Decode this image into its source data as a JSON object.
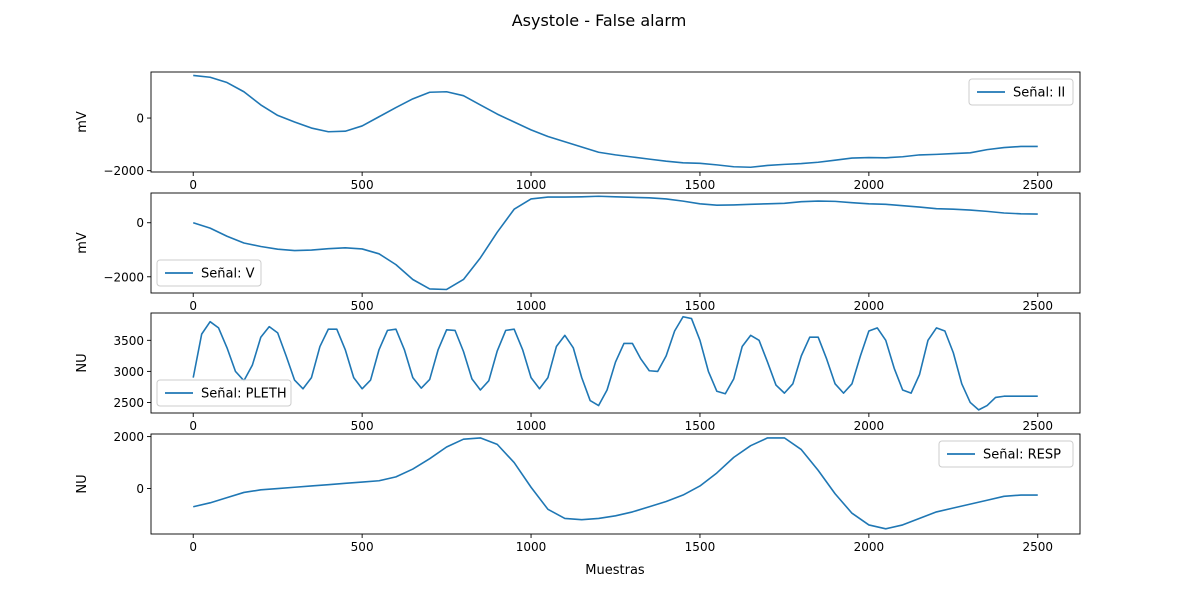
{
  "figure": {
    "title": "Asystole - False alarm",
    "xlabel": "Muestras"
  },
  "colors": {
    "series": "#1f77b4",
    "axes": "#000000",
    "legend_border": "#cccccc",
    "background": "#ffffff"
  },
  "chart_data": [
    {
      "type": "line",
      "ylabel": "mV",
      "xlim": [
        -125,
        2625
      ],
      "ylim": [
        -2050,
        1750
      ],
      "xticks": [
        0,
        500,
        1000,
        1500,
        2000,
        2500
      ],
      "yticks": [
        -2000,
        0
      ],
      "legend_position": "upper-right",
      "grid": false,
      "series": [
        {
          "name": "Señal: II",
          "x": [
            0,
            50,
            100,
            150,
            200,
            250,
            300,
            350,
            400,
            450,
            500,
            550,
            600,
            650,
            700,
            750,
            800,
            850,
            900,
            950,
            1000,
            1050,
            1100,
            1150,
            1200,
            1250,
            1300,
            1350,
            1400,
            1450,
            1500,
            1550,
            1600,
            1650,
            1700,
            1750,
            1800,
            1850,
            1900,
            1950,
            2000,
            2050,
            2100,
            2150,
            2200,
            2250,
            2300,
            2350,
            2400,
            2450,
            2500
          ],
          "y": [
            1620,
            1550,
            1350,
            1000,
            500,
            100,
            -150,
            -380,
            -520,
            -500,
            -300,
            50,
            400,
            730,
            980,
            1000,
            850,
            500,
            150,
            -150,
            -450,
            -700,
            -900,
            -1100,
            -1300,
            -1400,
            -1480,
            -1560,
            -1640,
            -1700,
            -1720,
            -1780,
            -1850,
            -1870,
            -1800,
            -1760,
            -1730,
            -1680,
            -1600,
            -1520,
            -1500,
            -1510,
            -1470,
            -1400,
            -1380,
            -1350,
            -1320,
            -1200,
            -1120,
            -1080,
            -1080
          ]
        }
      ]
    },
    {
      "type": "line",
      "ylabel": "mV",
      "xlim": [
        -125,
        2625
      ],
      "ylim": [
        -2600,
        1100
      ],
      "xticks": [
        0,
        500,
        1000,
        1500,
        2000,
        2500
      ],
      "yticks": [
        -2000,
        0
      ],
      "legend_position": "lower-left",
      "grid": false,
      "series": [
        {
          "name": "Señal: V",
          "x": [
            0,
            50,
            100,
            150,
            200,
            250,
            300,
            350,
            400,
            450,
            500,
            550,
            600,
            650,
            700,
            750,
            800,
            850,
            900,
            950,
            1000,
            1050,
            1100,
            1150,
            1200,
            1250,
            1300,
            1350,
            1400,
            1450,
            1500,
            1550,
            1600,
            1650,
            1700,
            1750,
            1800,
            1850,
            1900,
            1950,
            2000,
            2050,
            2100,
            2150,
            2200,
            2250,
            2300,
            2350,
            2400,
            2450,
            2500
          ],
          "y": [
            0,
            -200,
            -500,
            -750,
            -880,
            -980,
            -1030,
            -1010,
            -960,
            -930,
            -970,
            -1150,
            -1550,
            -2100,
            -2450,
            -2470,
            -2100,
            -1300,
            -350,
            500,
            880,
            950,
            950,
            960,
            980,
            960,
            940,
            920,
            880,
            800,
            700,
            650,
            660,
            680,
            700,
            720,
            780,
            800,
            790,
            740,
            700,
            680,
            630,
            580,
            520,
            500,
            470,
            420,
            360,
            330,
            320
          ]
        }
      ]
    },
    {
      "type": "line",
      "ylabel": "NU",
      "xlim": [
        -125,
        2625
      ],
      "ylim": [
        2330,
        3940
      ],
      "xticks": [
        0,
        500,
        1000,
        1500,
        2000,
        2500
      ],
      "yticks": [
        2500,
        3000,
        3500
      ],
      "legend_position": "lower-left",
      "grid": false,
      "series": [
        {
          "name": "Señal: PLETH",
          "x": [
            0,
            25,
            50,
            75,
            100,
            125,
            150,
            175,
            200,
            225,
            250,
            275,
            300,
            325,
            350,
            375,
            400,
            425,
            450,
            475,
            500,
            525,
            550,
            575,
            600,
            625,
            650,
            675,
            700,
            725,
            750,
            775,
            800,
            825,
            850,
            875,
            900,
            925,
            950,
            975,
            1000,
            1025,
            1050,
            1075,
            1100,
            1125,
            1150,
            1175,
            1200,
            1225,
            1250,
            1275,
            1300,
            1325,
            1350,
            1375,
            1400,
            1425,
            1450,
            1475,
            1500,
            1525,
            1550,
            1575,
            1600,
            1625,
            1650,
            1675,
            1700,
            1725,
            1750,
            1775,
            1800,
            1825,
            1850,
            1875,
            1900,
            1925,
            1950,
            1975,
            2000,
            2025,
            2050,
            2075,
            2100,
            2125,
            2150,
            2175,
            2200,
            2225,
            2250,
            2275,
            2300,
            2325,
            2350,
            2375,
            2400,
            2425,
            2450,
            2475,
            2500
          ],
          "y": [
            2900,
            3600,
            3800,
            3700,
            3380,
            3000,
            2850,
            3100,
            3550,
            3720,
            3620,
            3250,
            2860,
            2720,
            2900,
            3400,
            3680,
            3680,
            3350,
            2900,
            2720,
            2860,
            3350,
            3660,
            3680,
            3350,
            2900,
            2730,
            2870,
            3350,
            3670,
            3660,
            3320,
            2880,
            2700,
            2850,
            3330,
            3660,
            3680,
            3350,
            2900,
            2720,
            2900,
            3400,
            3580,
            3380,
            2900,
            2530,
            2450,
            2700,
            3150,
            3450,
            3450,
            3200,
            3010,
            3000,
            3250,
            3650,
            3880,
            3850,
            3500,
            3000,
            2680,
            2640,
            2880,
            3400,
            3580,
            3500,
            3150,
            2780,
            2650,
            2800,
            3250,
            3550,
            3550,
            3200,
            2800,
            2650,
            2800,
            3250,
            3650,
            3700,
            3500,
            3050,
            2700,
            2650,
            2950,
            3500,
            3700,
            3650,
            3300,
            2800,
            2500,
            2380,
            2450,
            2580,
            2600,
            2600,
            2600,
            2600,
            2600
          ]
        }
      ]
    },
    {
      "type": "line",
      "ylabel": "NU",
      "xlabel": "Muestras",
      "xlim": [
        -125,
        2625
      ],
      "ylim": [
        -1750,
        2100
      ],
      "xticks": [
        0,
        500,
        1000,
        1500,
        2000,
        2500
      ],
      "yticks": [
        0,
        2000
      ],
      "legend_position": "upper-right",
      "grid": false,
      "series": [
        {
          "name": "Señal: RESP",
          "x": [
            0,
            50,
            100,
            150,
            200,
            250,
            300,
            350,
            400,
            450,
            500,
            550,
            600,
            650,
            700,
            750,
            800,
            850,
            900,
            950,
            1000,
            1050,
            1100,
            1150,
            1200,
            1250,
            1300,
            1350,
            1400,
            1450,
            1500,
            1550,
            1600,
            1650,
            1700,
            1750,
            1800,
            1850,
            1900,
            1950,
            2000,
            2050,
            2100,
            2150,
            2200,
            2250,
            2300,
            2350,
            2400,
            2450,
            2500
          ],
          "y": [
            -700,
            -550,
            -350,
            -150,
            -50,
            0,
            50,
            100,
            150,
            200,
            250,
            300,
            450,
            750,
            1150,
            1600,
            1900,
            1950,
            1700,
            1000,
            50,
            -800,
            -1150,
            -1200,
            -1150,
            -1050,
            -900,
            -700,
            -500,
            -250,
            100,
            600,
            1200,
            1650,
            1950,
            1950,
            1500,
            700,
            -200,
            -950,
            -1400,
            -1550,
            -1400,
            -1150,
            -900,
            -750,
            -600,
            -450,
            -300,
            -250,
            -250
          ]
        }
      ]
    }
  ]
}
